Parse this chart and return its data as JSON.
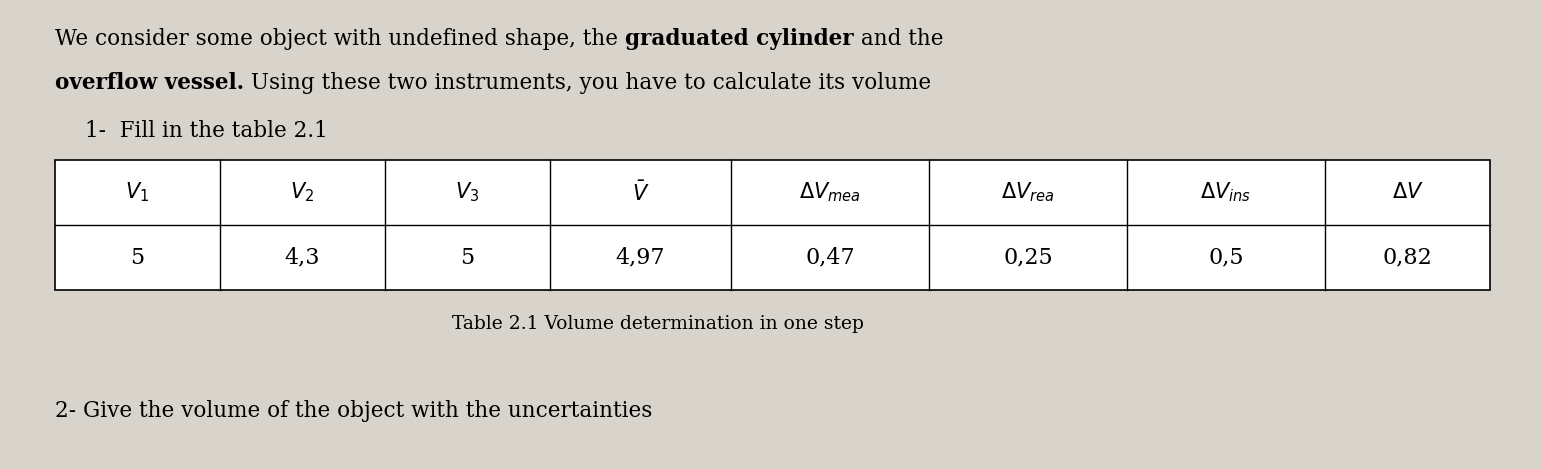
{
  "bg_color": "#d8d4cc",
  "line1_pre": "We consider some object with undefined shape, the ",
  "line1_bold": "graduated cylinder",
  "line1_post": " and the",
  "line2_bold": "overflow vessel.",
  "line2_post": " Using these two instruments, you have to calculate its volume",
  "item1": "1-  Fill in the table 2.1",
  "item2": "2- Give the volume of the object with the uncertainties",
  "table_caption": "Table 2.1 Volume determination in one step",
  "data_row": [
    "5",
    "4,3",
    "5",
    "4,97",
    "0,47",
    "0,25",
    "0,5",
    "0,82"
  ],
  "col_widths_rel": [
    1.0,
    1.0,
    1.0,
    1.1,
    1.2,
    1.2,
    1.2,
    1.0
  ],
  "fontsize_text": 15.5,
  "fontsize_table": 15.0,
  "fontsize_caption": 13.5
}
